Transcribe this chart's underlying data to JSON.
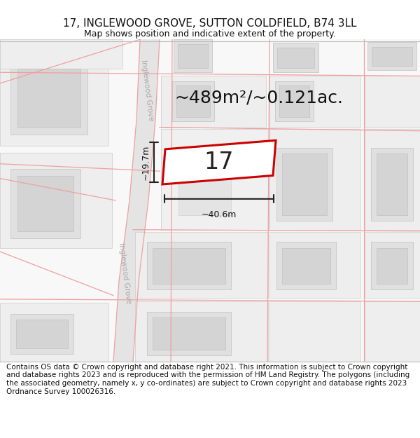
{
  "title": "17, INGLEWOOD GROVE, SUTTON COLDFIELD, B74 3LL",
  "subtitle": "Map shows position and indicative extent of the property.",
  "footer": "Contains OS data © Crown copyright and database right 2021. This information is subject to Crown copyright and database rights 2023 and is reproduced with the permission of HM Land Registry. The polygons (including the associated geometry, namely x, y co-ordinates) are subject to Crown copyright and database rights 2023 Ordnance Survey 100026316.",
  "area_label": "~489m²/~0.121ac.",
  "width_label": "~40.6m",
  "height_label": "~19.7m",
  "plot_number": "17",
  "map_bg": "#f7f7f7",
  "road_fill": "#e8e8e8",
  "building_fill": "#e0e0e0",
  "building_inner_fill": "#d4d4d4",
  "highlight_fill": "#ffffff",
  "highlight_stroke": "#cc0000",
  "pink_line_color": "#f0a0a0",
  "dim_line_color": "#222222",
  "title_fontsize": 11,
  "subtitle_fontsize": 9,
  "footer_fontsize": 7.5,
  "area_fontsize": 18,
  "plot_fontsize": 24
}
